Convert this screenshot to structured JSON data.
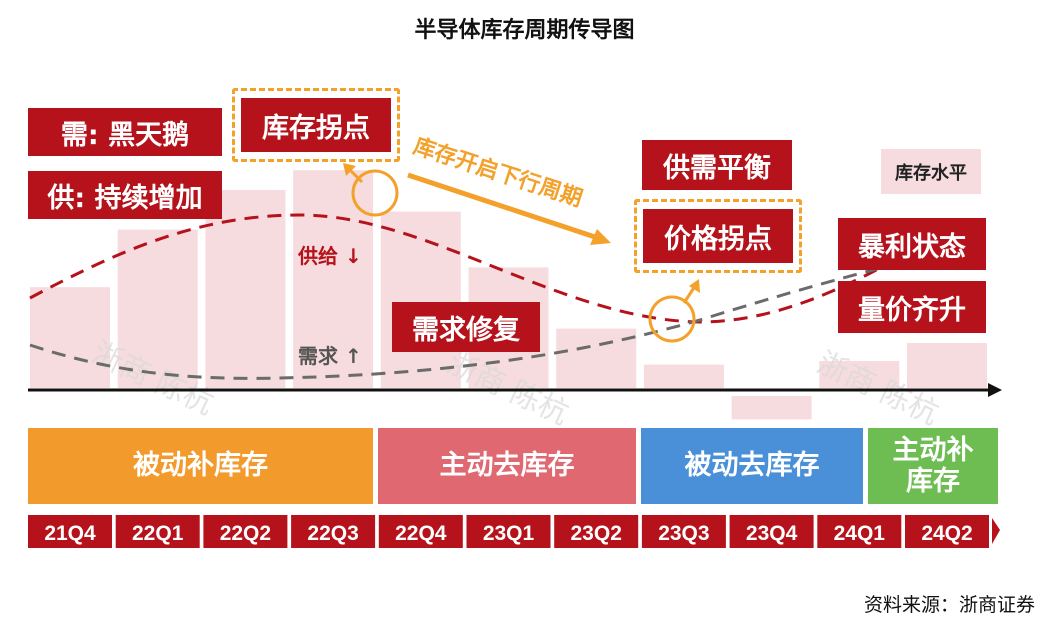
{
  "title": "半导体库存周期传导图",
  "legend_label": "库存水平",
  "annotations": {
    "demand_black_swan": "需: 黑天鹅",
    "supply_continuous_increase": "供: 持续增加",
    "inventory_inflection": "库存拐点",
    "downcycle_start": "库存开启下行周期",
    "supply_down": "供给 ↓",
    "demand_up": "需求 ↑",
    "demand_repair": "需求修复",
    "supply_demand_balance": "供需平衡",
    "price_inflection": "价格拐点",
    "windfall_profit": "暴利状态",
    "volume_price_rise": "量价齐升"
  },
  "watermark": "浙商 陈杭",
  "phases": [
    {
      "label": "被动补库存",
      "color": "#f39a2c"
    },
    {
      "label": "主动去库存",
      "color": "#e06870"
    },
    {
      "label": "被动去库存",
      "color": "#4a90d9"
    },
    {
      "label": "主动补库存",
      "color": "#6dbd52"
    }
  ],
  "quarters": [
    "21Q4",
    "22Q1",
    "22Q2",
    "22Q3",
    "22Q4",
    "23Q1",
    "23Q2",
    "23Q3",
    "23Q4",
    "24Q1",
    "24Q2"
  ],
  "inventory_levels": [
    0.56,
    0.88,
    1.1,
    1.21,
    0.98,
    0.67,
    0.33,
    0.13,
    -0.13,
    0.15,
    0.25
  ],
  "colors": {
    "bar": "#f6dcde",
    "supply_line": "#b5121b",
    "demand_line": "#6b6b6b",
    "accent": "#f3a12b",
    "quarter_bg": "#b5121b"
  },
  "source": "资料来源：浙商证券"
}
